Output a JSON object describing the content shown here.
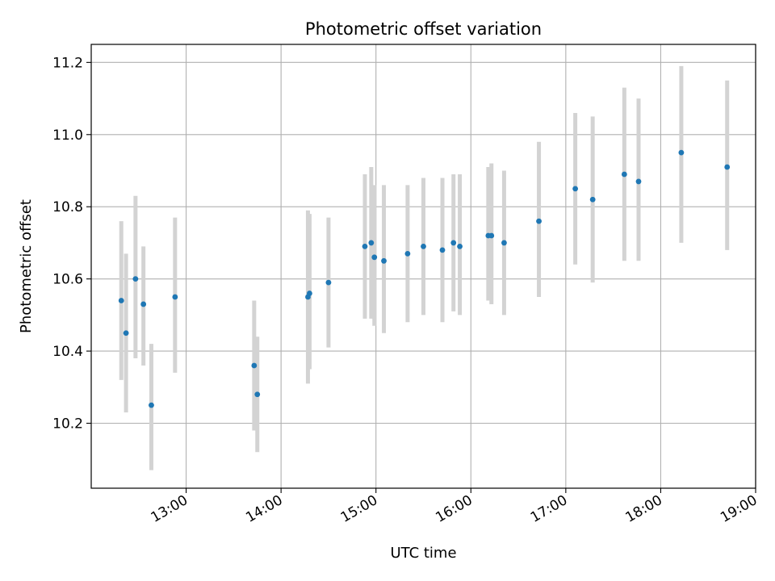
{
  "chart_data": {
    "type": "scatter",
    "title": "Photometric offset variation",
    "xlabel": "UTC time",
    "ylabel": "Photometric offset",
    "grid": true,
    "x_unit": "time of day (UTC), HH:MM",
    "xlim": [
      "12:00",
      "19:00"
    ],
    "ylim": [
      10.02,
      11.25
    ],
    "x_ticks": [
      "13:00",
      "14:00",
      "15:00",
      "16:00",
      "17:00",
      "18:00",
      "19:00"
    ],
    "y_ticks": [
      10.2,
      10.4,
      10.6,
      10.8,
      11.0,
      11.2
    ],
    "y_tick_labels": [
      "10.2",
      "10.4",
      "10.6",
      "10.8",
      "11.0",
      "11.2"
    ],
    "colors": {
      "points": "#1f77b4",
      "errorbars": "#d3d3d3",
      "grid": "#b0b0b0"
    },
    "points": [
      {
        "x": "12:19",
        "y": 10.54,
        "ylow": 10.32,
        "yhigh": 10.76
      },
      {
        "x": "12:22",
        "y": 10.45,
        "ylow": 10.23,
        "yhigh": 10.67
      },
      {
        "x": "12:28",
        "y": 10.6,
        "ylow": 10.38,
        "yhigh": 10.83
      },
      {
        "x": "12:33",
        "y": 10.53,
        "ylow": 10.36,
        "yhigh": 10.69
      },
      {
        "x": "12:38",
        "y": 10.25,
        "ylow": 10.07,
        "yhigh": 10.42
      },
      {
        "x": "12:53",
        "y": 10.55,
        "ylow": 10.34,
        "yhigh": 10.77
      },
      {
        "x": "13:43",
        "y": 10.36,
        "ylow": 10.18,
        "yhigh": 10.54
      },
      {
        "x": "13:45",
        "y": 10.28,
        "ylow": 10.12,
        "yhigh": 10.44
      },
      {
        "x": "14:17",
        "y": 10.55,
        "ylow": 10.31,
        "yhigh": 10.79
      },
      {
        "x": "14:18",
        "y": 10.56,
        "ylow": 10.35,
        "yhigh": 10.78
      },
      {
        "x": "14:30",
        "y": 10.59,
        "ylow": 10.41,
        "yhigh": 10.77
      },
      {
        "x": "14:53",
        "y": 10.69,
        "ylow": 10.49,
        "yhigh": 10.89
      },
      {
        "x": "14:57",
        "y": 10.7,
        "ylow": 10.49,
        "yhigh": 10.91
      },
      {
        "x": "14:59",
        "y": 10.66,
        "ylow": 10.47,
        "yhigh": 10.86
      },
      {
        "x": "15:05",
        "y": 10.65,
        "ylow": 10.45,
        "yhigh": 10.86
      },
      {
        "x": "15:20",
        "y": 10.67,
        "ylow": 10.48,
        "yhigh": 10.86
      },
      {
        "x": "15:30",
        "y": 10.69,
        "ylow": 10.5,
        "yhigh": 10.88
      },
      {
        "x": "15:42",
        "y": 10.68,
        "ylow": 10.48,
        "yhigh": 10.88
      },
      {
        "x": "15:49",
        "y": 10.7,
        "ylow": 10.51,
        "yhigh": 10.89
      },
      {
        "x": "15:53",
        "y": 10.69,
        "ylow": 10.5,
        "yhigh": 10.89
      },
      {
        "x": "16:11",
        "y": 10.72,
        "ylow": 10.54,
        "yhigh": 10.91
      },
      {
        "x": "16:13",
        "y": 10.72,
        "ylow": 10.53,
        "yhigh": 10.92
      },
      {
        "x": "16:21",
        "y": 10.7,
        "ylow": 10.5,
        "yhigh": 10.9
      },
      {
        "x": "16:43",
        "y": 10.76,
        "ylow": 10.55,
        "yhigh": 10.98
      },
      {
        "x": "17:06",
        "y": 10.85,
        "ylow": 10.64,
        "yhigh": 11.06
      },
      {
        "x": "17:17",
        "y": 10.82,
        "ylow": 10.59,
        "yhigh": 11.05
      },
      {
        "x": "17:37",
        "y": 10.89,
        "ylow": 10.65,
        "yhigh": 11.13
      },
      {
        "x": "17:46",
        "y": 10.87,
        "ylow": 10.65,
        "yhigh": 11.1
      },
      {
        "x": "18:13",
        "y": 10.95,
        "ylow": 10.7,
        "yhigh": 11.19
      },
      {
        "x": "18:42",
        "y": 10.91,
        "ylow": 10.68,
        "yhigh": 11.15
      }
    ]
  }
}
